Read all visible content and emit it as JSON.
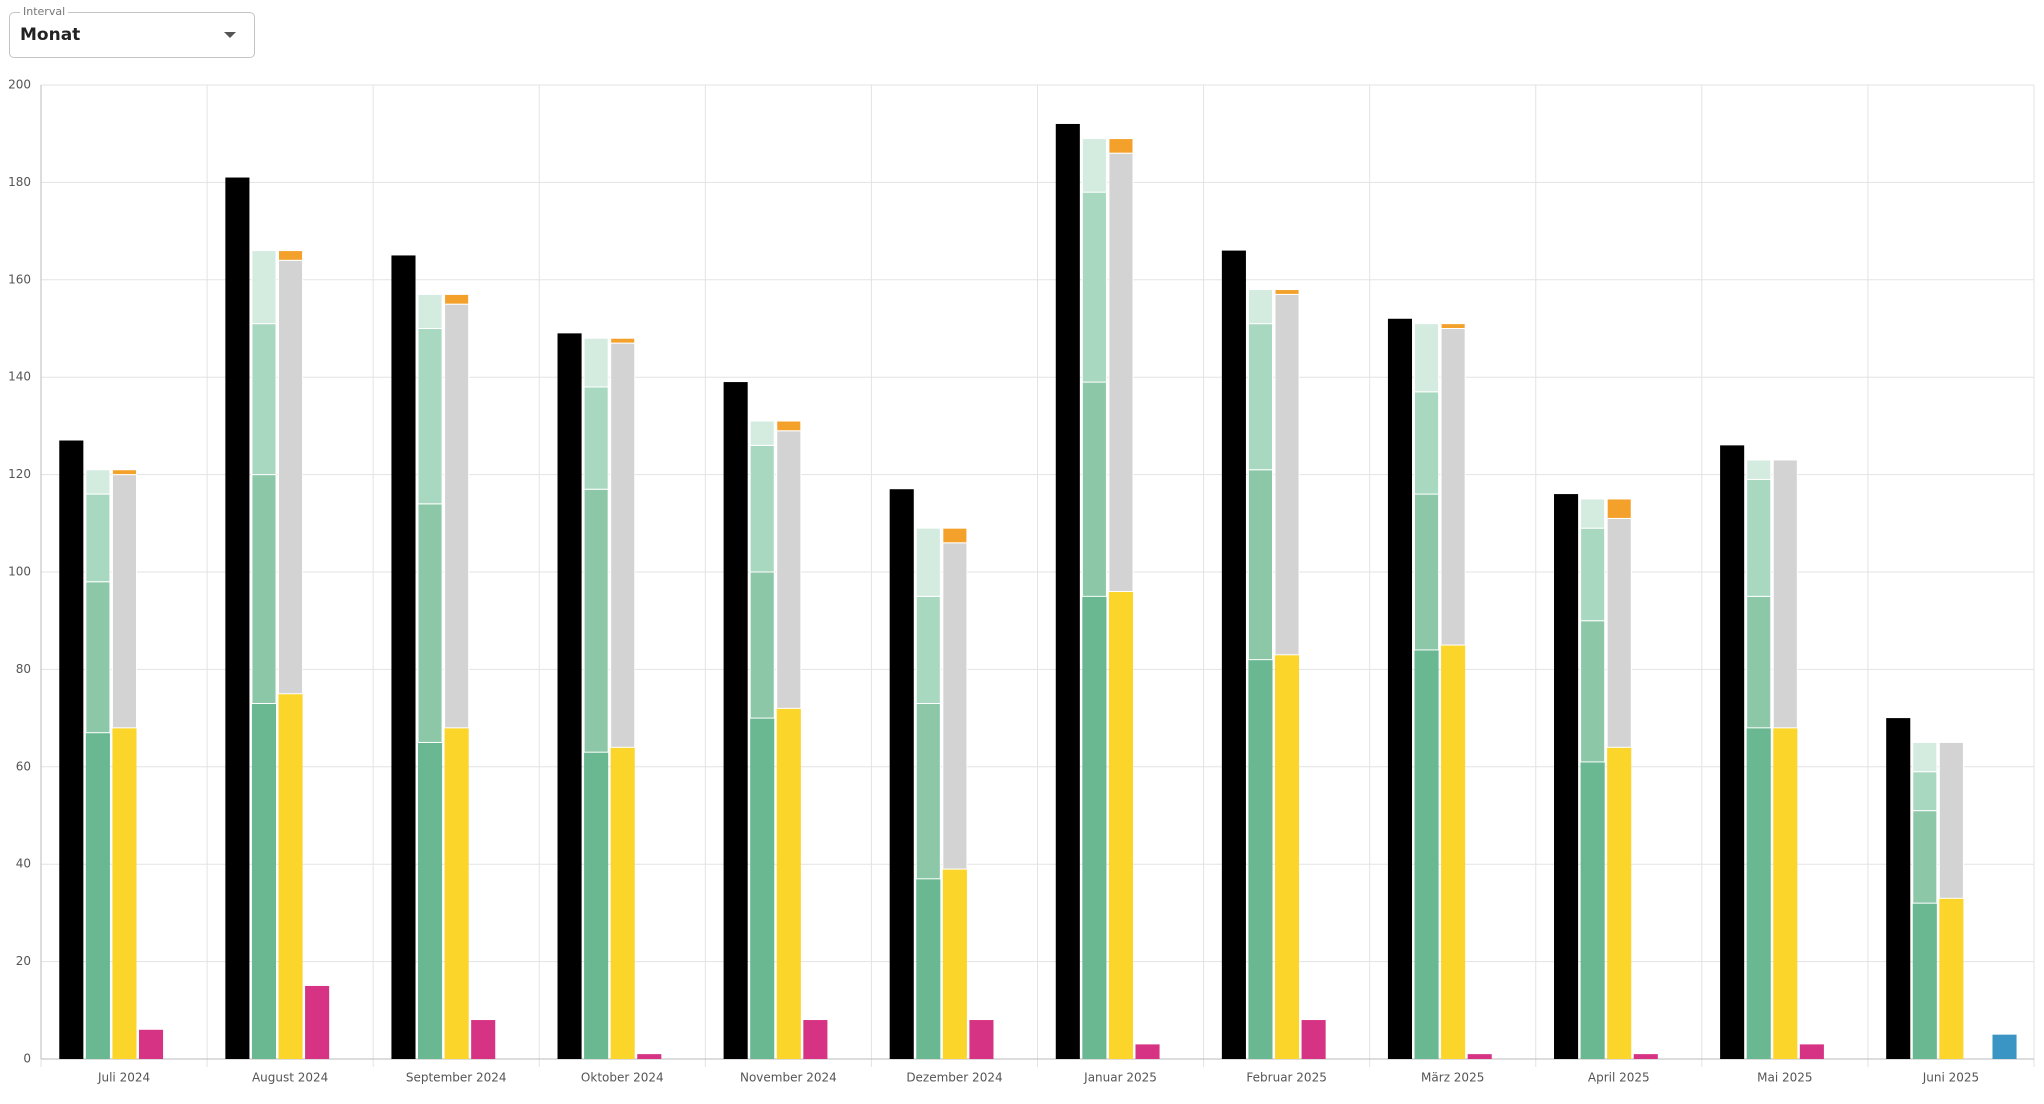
{
  "controls": {
    "label": "Interval",
    "value": "Monat"
  },
  "chart_data": {
    "type": "bar",
    "categories": [
      "Juli 2024",
      "August 2024",
      "September 2024",
      "Oktober 2024",
      "November 2024",
      "Dezember 2024",
      "Januar 2025",
      "Februar 2025",
      "März 2025",
      "April 2025",
      "Mai 2025",
      "Juni 2025"
    ],
    "ylim": [
      0,
      200
    ],
    "yticks": [
      0,
      20,
      40,
      60,
      80,
      100,
      120,
      140,
      160,
      180,
      200
    ],
    "grid": true,
    "stacks": [
      {
        "series": [
          {
            "color": "#000000",
            "values": [
              127,
              181,
              165,
              149,
              139,
              117,
              192,
              166,
              152,
              116,
              126,
              70
            ]
          }
        ]
      },
      {
        "series": [
          {
            "color": "#69b891",
            "values": [
              67,
              73,
              65,
              63,
              70,
              37,
              95,
              82,
              84,
              61,
              68,
              32
            ]
          },
          {
            "color": "#8cc7a8",
            "values": [
              31,
              47,
              49,
              54,
              30,
              36,
              44,
              39,
              32,
              29,
              27,
              19
            ]
          },
          {
            "color": "#a8d8c0",
            "values": [
              18,
              31,
              36,
              21,
              26,
              22,
              39,
              30,
              21,
              19,
              24,
              8
            ]
          },
          {
            "color": "#d4ebe0",
            "values": [
              5,
              15,
              7,
              10,
              5,
              14,
              11,
              7,
              14,
              6,
              4,
              6
            ]
          }
        ]
      },
      {
        "series": [
          {
            "color": "#fbd52a",
            "values": [
              68,
              75,
              68,
              64,
              72,
              39,
              96,
              83,
              85,
              64,
              68,
              33
            ]
          },
          {
            "color": "#d3d3d3",
            "values": [
              52,
              89,
              87,
              83,
              57,
              67,
              90,
              74,
              65,
              47,
              55,
              32
            ]
          },
          {
            "color": "#f3a12a",
            "values": [
              1,
              2,
              2,
              1,
              2,
              3,
              3,
              1,
              1,
              4,
              0,
              0
            ]
          }
        ]
      },
      {
        "series": [
          {
            "color": "#d63384",
            "values": [
              6,
              15,
              8,
              1,
              8,
              8,
              3,
              8,
              1,
              1,
              3,
              null
            ]
          }
        ]
      },
      {
        "series": [
          {
            "color": "#3a95c4",
            "values": [
              null,
              null,
              null,
              null,
              null,
              null,
              null,
              null,
              null,
              null,
              null,
              5
            ]
          }
        ]
      }
    ]
  }
}
